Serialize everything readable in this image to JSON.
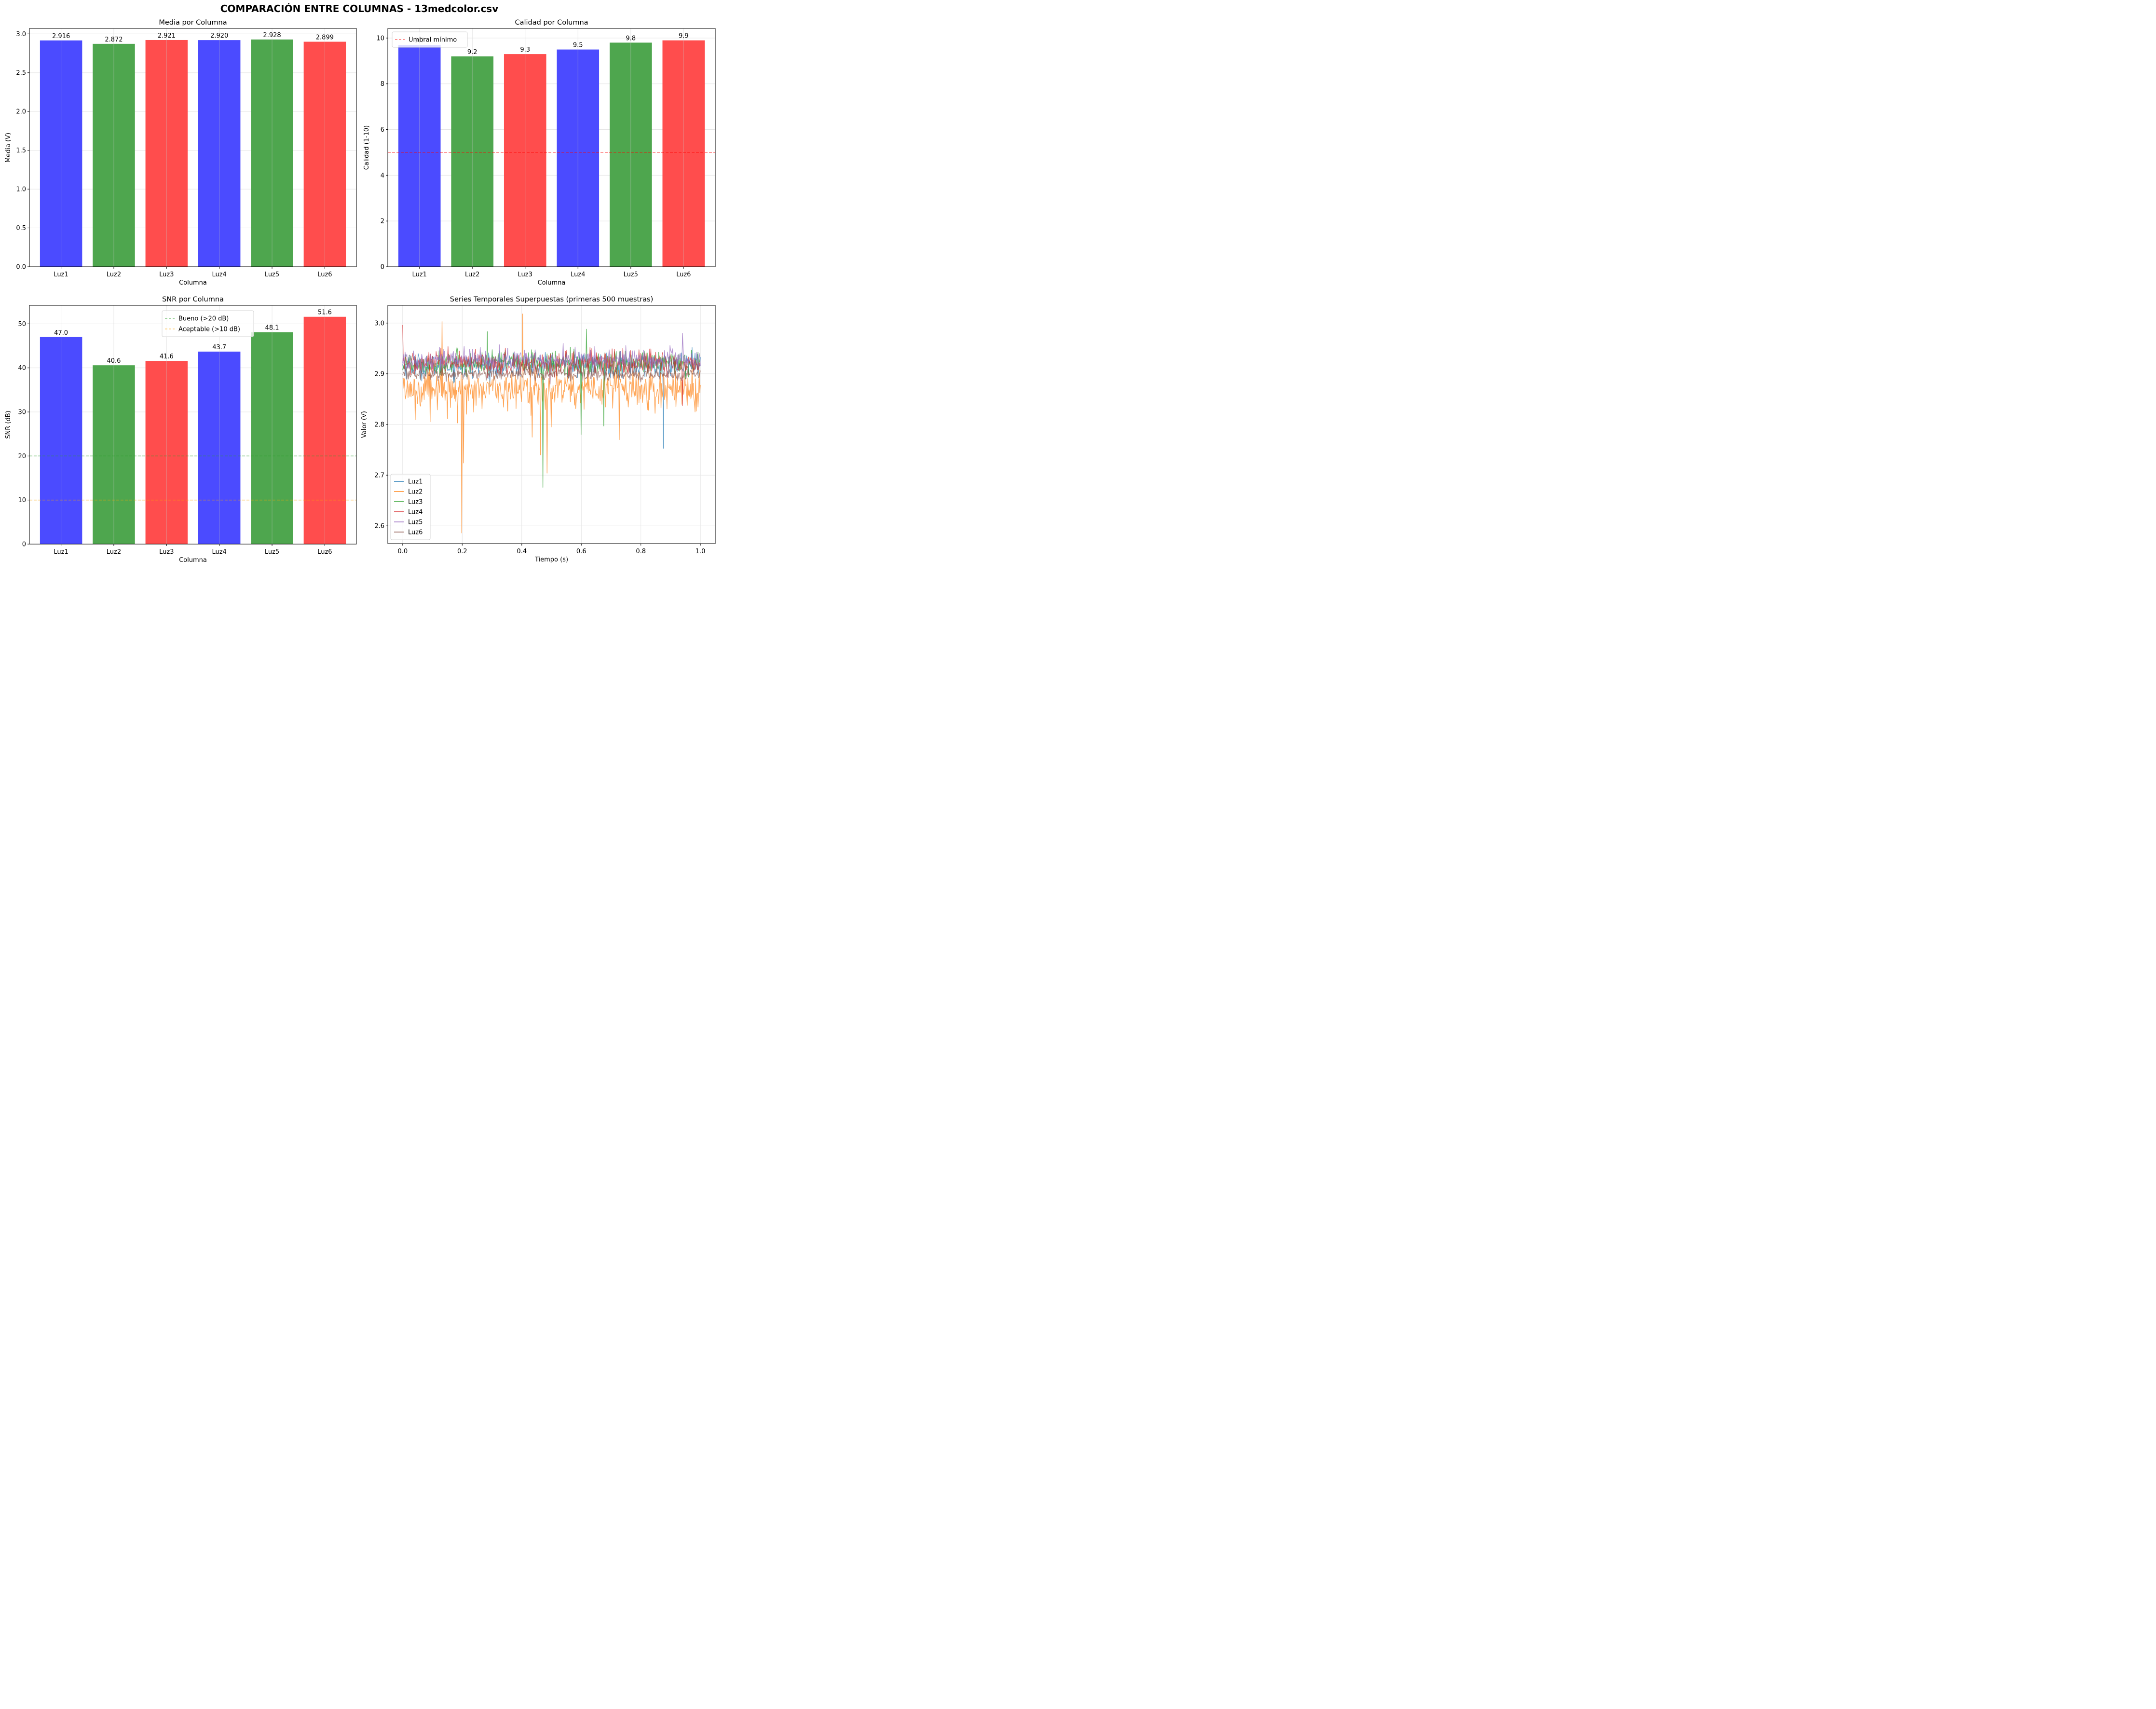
{
  "figure": {
    "suptitle": "COMPARACIÓN ENTRE COLUMNAS - 13medcolor.csv"
  },
  "chart_data": [
    {
      "id": "media",
      "type": "bar",
      "title": "Media por Columna",
      "xlabel": "Columna",
      "ylabel": "Media (V)",
      "categories": [
        "Luz1",
        "Luz2",
        "Luz3",
        "Luz4",
        "Luz5",
        "Luz6"
      ],
      "values": [
        2.916,
        2.872,
        2.921,
        2.92,
        2.928,
        2.899
      ],
      "value_labels": [
        "2.916",
        "2.872",
        "2.921",
        "2.920",
        "2.928",
        "2.899"
      ],
      "bar_colors": [
        "#4b4bff",
        "#4ea64e",
        "#ff4d4d",
        "#4b4bff",
        "#4ea64e",
        "#ff4d4d"
      ],
      "ylim": [
        0,
        3.07
      ],
      "yticks": [
        0.0,
        0.5,
        1.0,
        1.5,
        2.0,
        2.5,
        3.0
      ],
      "ytick_labels": [
        "0.0",
        "0.5",
        "1.0",
        "1.5",
        "2.0",
        "2.5",
        "3.0"
      ],
      "grid": true,
      "hlines": [],
      "legend": null
    },
    {
      "id": "calidad",
      "type": "bar",
      "title": "Calidad por Columna",
      "xlabel": "Columna",
      "ylabel": "Calidad (1-10)",
      "categories": [
        "Luz1",
        "Luz2",
        "Luz3",
        "Luz4",
        "Luz5",
        "Luz6"
      ],
      "values": [
        9.7,
        9.2,
        9.3,
        9.5,
        9.8,
        9.9
      ],
      "value_labels": [
        "9.7",
        "9.2",
        "9.3",
        "9.5",
        "9.8",
        "9.9"
      ],
      "bar_colors": [
        "#4b4bff",
        "#4ea64e",
        "#ff4d4d",
        "#4b4bff",
        "#4ea64e",
        "#ff4d4d"
      ],
      "ylim": [
        0,
        10.42
      ],
      "yticks": [
        0,
        2,
        4,
        6,
        8,
        10
      ],
      "ytick_labels": [
        "0",
        "2",
        "4",
        "6",
        "8",
        "10"
      ],
      "grid": true,
      "hlines": [
        {
          "y": 5,
          "color": "#ff0000",
          "label": "Umbral mínimo"
        }
      ],
      "legend": {
        "placement": "top-left",
        "entries": [
          "Umbral mínimo"
        ]
      }
    },
    {
      "id": "snr",
      "type": "bar",
      "title": "SNR por Columna",
      "xlabel": "Columna",
      "ylabel": "SNR (dB)",
      "categories": [
        "Luz1",
        "Luz2",
        "Luz3",
        "Luz4",
        "Luz5",
        "Luz6"
      ],
      "values": [
        47.0,
        40.6,
        41.6,
        43.7,
        48.1,
        51.6
      ],
      "value_labels": [
        "47.0",
        "40.6",
        "41.6",
        "43.7",
        "48.1",
        "51.6"
      ],
      "bar_colors": [
        "#4b4bff",
        "#4ea64e",
        "#ff4d4d",
        "#4b4bff",
        "#4ea64e",
        "#ff4d4d"
      ],
      "ylim": [
        0,
        54.2
      ],
      "yticks": [
        0,
        10,
        20,
        30,
        40,
        50
      ],
      "ytick_labels": [
        "0",
        "10",
        "20",
        "30",
        "40",
        "50"
      ],
      "grid": true,
      "hlines": [
        {
          "y": 20,
          "color": "#2ca02c",
          "label": "Bueno (>20 dB)"
        },
        {
          "y": 10,
          "color": "#ffa500",
          "label": "Aceptable (>10 dB)"
        }
      ],
      "legend": {
        "placement": "top-center",
        "entries": [
          "Bueno (>20 dB)",
          "Aceptable (>10 dB)"
        ]
      }
    },
    {
      "id": "series",
      "type": "line",
      "title": "Series Temporales Superpuestas (primeras 500 muestras)",
      "xlabel": "Tiempo (s)",
      "ylabel": "Valor (V)",
      "xlim": [
        -0.05,
        1.05
      ],
      "ylim": [
        2.565,
        3.035
      ],
      "xticks": [
        0.0,
        0.2,
        0.4,
        0.6,
        0.8,
        1.0
      ],
      "xtick_labels": [
        "0.0",
        "0.2",
        "0.4",
        "0.6",
        "0.8",
        "1.0"
      ],
      "yticks": [
        2.6,
        2.7,
        2.8,
        2.9,
        3.0
      ],
      "ytick_labels": [
        "2.6",
        "2.7",
        "2.8",
        "2.9",
        "3.0"
      ],
      "grid": true,
      "n_samples": 500,
      "legend": {
        "placement": "bottom-left"
      },
      "series": [
        {
          "name": "Luz1",
          "color": "#1f77b4",
          "mean": 2.916,
          "noise": 0.012,
          "spikes": [
            {
              "x": 0.875,
              "y": 2.753
            }
          ]
        },
        {
          "name": "Luz2",
          "color": "#ff7f0e",
          "mean": 2.872,
          "noise": 0.018,
          "spikes": [
            {
              "x": 0.133,
              "y": 3.003
            },
            {
              "x": 0.185,
              "y": 2.803
            },
            {
              "x": 0.198,
              "y": 2.586
            },
            {
              "x": 0.204,
              "y": 2.724
            },
            {
              "x": 0.402,
              "y": 3.018
            },
            {
              "x": 0.435,
              "y": 2.775
            },
            {
              "x": 0.462,
              "y": 2.74
            },
            {
              "x": 0.484,
              "y": 2.704
            },
            {
              "x": 0.499,
              "y": 2.795
            },
            {
              "x": 0.727,
              "y": 2.77
            }
          ]
        },
        {
          "name": "Luz3",
          "color": "#2ca02c",
          "mean": 2.921,
          "noise": 0.012,
          "spikes": [
            {
              "x": 0.285,
              "y": 2.983
            },
            {
              "x": 0.47,
              "y": 2.676
            },
            {
              "x": 0.6,
              "y": 2.78
            },
            {
              "x": 0.618,
              "y": 2.988
            },
            {
              "x": 0.676,
              "y": 2.797
            }
          ]
        },
        {
          "name": "Luz4",
          "color": "#d62728",
          "mean": 2.92,
          "noise": 0.012,
          "spikes": [
            {
              "x": 0.0,
              "y": 2.996
            },
            {
              "x": 0.94,
              "y": 2.837
            }
          ]
        },
        {
          "name": "Luz5",
          "color": "#9467bd",
          "mean": 2.928,
          "noise": 0.01,
          "spikes": [
            {
              "x": 0.94,
              "y": 2.98
            }
          ]
        },
        {
          "name": "Luz6",
          "color": "#8c564b",
          "mean": 2.899,
          "noise": 0.006,
          "spikes": []
        }
      ]
    }
  ]
}
